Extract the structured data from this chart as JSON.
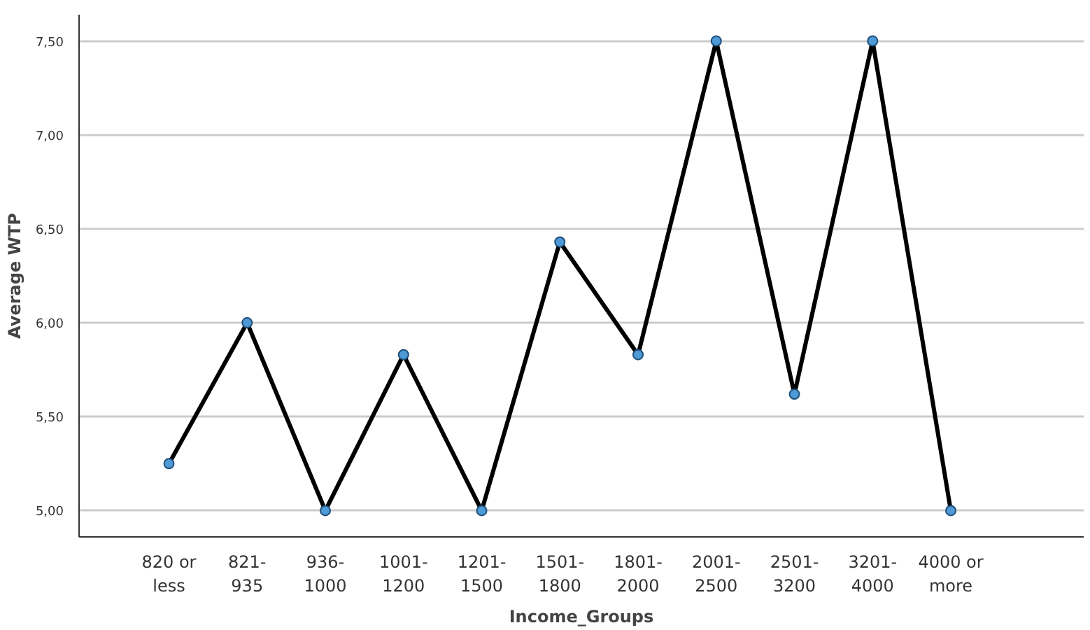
{
  "chart_data": {
    "type": "line",
    "xlabel": "Income_Groups",
    "ylabel": "Average WTP",
    "categories": [
      "820 or\nless",
      "821-\n935",
      "936-\n1000",
      "1001-\n1200",
      "1201-\n1500",
      "1501-\n1800",
      "1801-\n2000",
      "2001-\n2500",
      "2501-\n3200",
      "3201-\n4000",
      "4000 or\nmore"
    ],
    "series": [
      {
        "color": "#000000",
        "values": [
          5.25,
          6.0,
          5.0,
          5.83,
          5.0,
          6.43,
          5.83,
          7.5,
          5.62,
          7.5,
          5.0
        ]
      }
    ],
    "ylim": [
      4.86,
      7.64
    ],
    "yticks": [
      {
        "value": 5.0,
        "label": "5,00"
      },
      {
        "value": 5.5,
        "label": "5,50"
      },
      {
        "value": 6.0,
        "label": "6,00"
      },
      {
        "value": 6.5,
        "label": "6,50"
      },
      {
        "value": 7.0,
        "label": "7,00"
      },
      {
        "value": 7.5,
        "label": "7,50"
      }
    ],
    "grid": "y",
    "marker": "circle",
    "line_style": "solid"
  }
}
